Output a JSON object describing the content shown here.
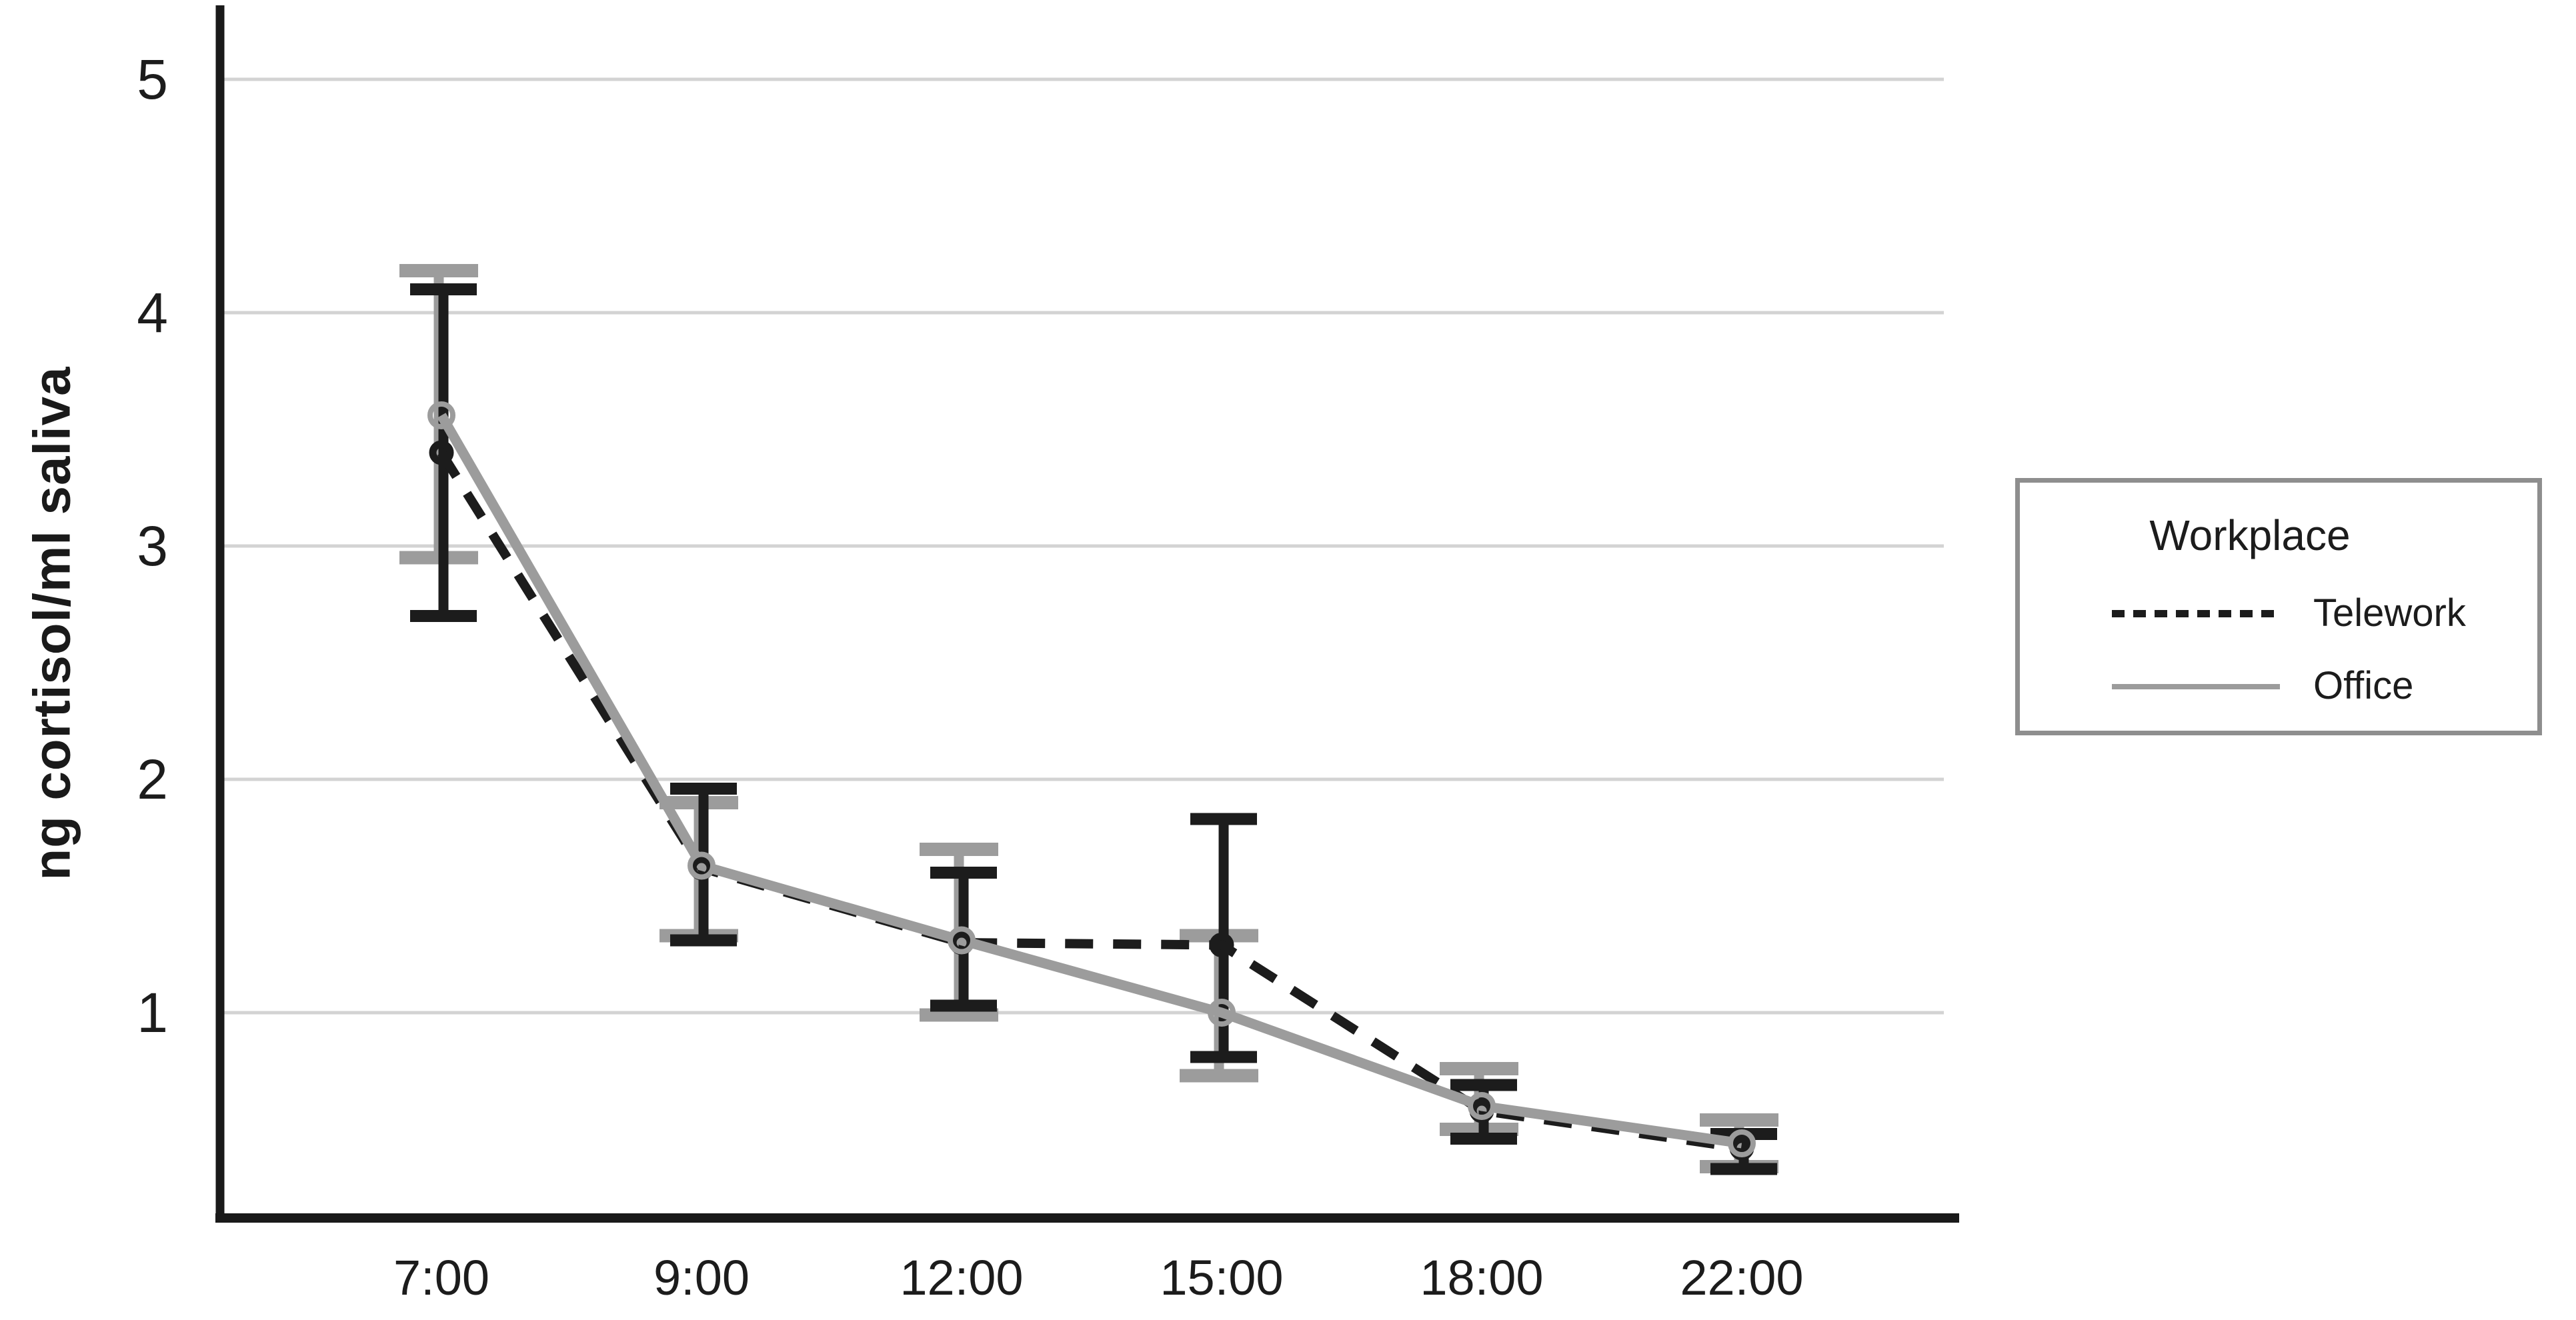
{
  "figure": {
    "y_axis_title": "ng cortisol/ml saliva",
    "legend": {
      "title": "Workplace",
      "entries": [
        {
          "label": "Telework",
          "line_style": "dashed",
          "color": "#1c1c1c"
        },
        {
          "label": "Office",
          "line_style": "solid",
          "color": "#9c9c9c"
        }
      ]
    }
  },
  "chart_data": {
    "type": "line",
    "title": "",
    "xlabel": "",
    "ylabel": "ng cortisol/ml saliva",
    "categories": [
      "7:00",
      "9:00",
      "12:00",
      "15:00",
      "18:00",
      "22:00"
    ],
    "y_ticks": [
      1,
      2,
      3,
      4,
      5
    ],
    "ylim": [
      0,
      5.3
    ],
    "grid": "horizontal-gridlines-only",
    "legend_position": "right",
    "legend_title": "Workplace",
    "error_bars": true,
    "series": [
      {
        "name": "Telework",
        "style": "dashed",
        "color": "#1c1c1c",
        "marker": "open-circle",
        "values": [
          3.4,
          1.62,
          1.3,
          1.29,
          0.58,
          0.42
        ],
        "error_upper": [
          4.1,
          1.96,
          1.6,
          1.83,
          0.69,
          0.48
        ],
        "error_lower": [
          2.7,
          1.31,
          1.03,
          0.81,
          0.46,
          0.33
        ]
      },
      {
        "name": "Office",
        "style": "solid",
        "color": "#9c9c9c",
        "marker": "open-circle",
        "values": [
          3.56,
          1.63,
          1.31,
          1.0,
          0.6,
          0.44
        ],
        "error_upper": [
          4.18,
          1.9,
          1.7,
          1.33,
          0.76,
          0.54
        ],
        "error_lower": [
          2.95,
          1.33,
          0.99,
          0.73,
          0.5,
          0.34
        ]
      }
    ]
  }
}
